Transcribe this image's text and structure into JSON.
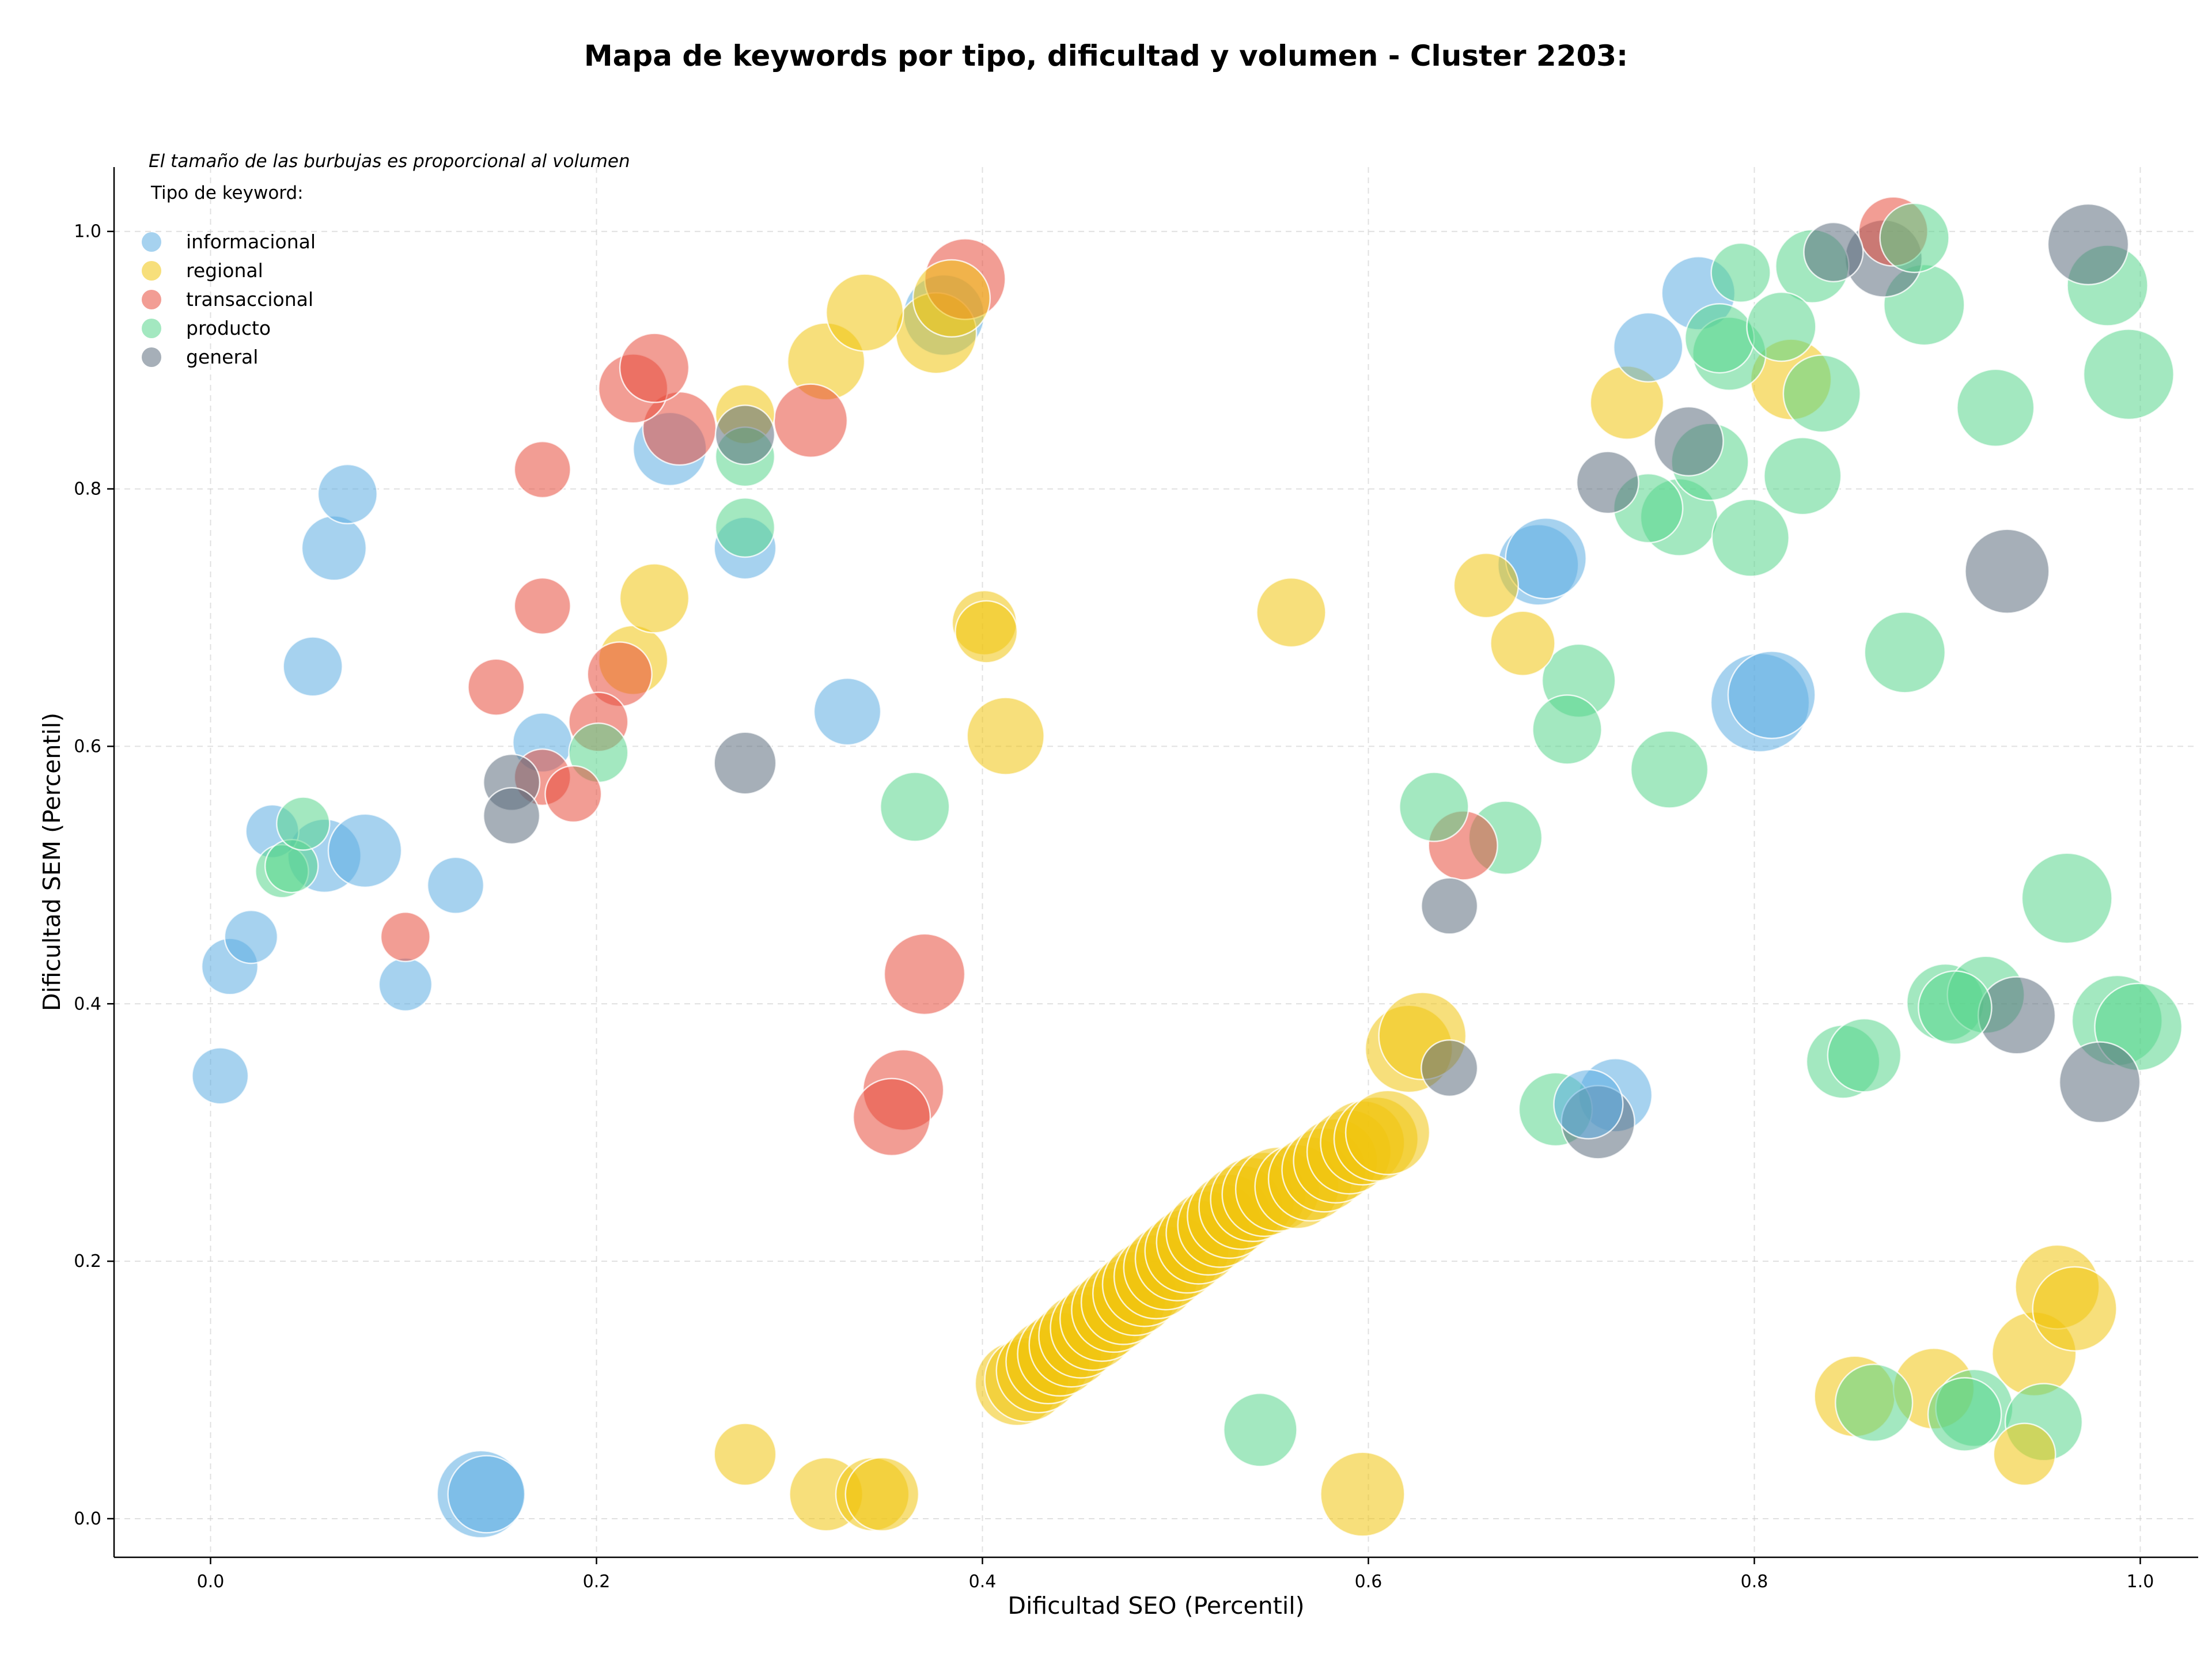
{
  "chart_data": {
    "type": "scatter",
    "title": "Mapa de keywords por tipo, dificultad y volumen - Cluster 2203:",
    "xlabel": "Dificultad SEO (Percentil)",
    "ylabel": "Dificultad SEM (Percentil)",
    "xlim": [
      -0.05,
      1.03
    ],
    "ylim": [
      -0.03,
      1.05
    ],
    "xticks": [
      "0.0",
      "0.2",
      "0.4",
      "0.6",
      "0.8",
      "1.0"
    ],
    "yticks": [
      "0.0",
      "0.2",
      "0.4",
      "0.6",
      "0.8",
      "1.0"
    ],
    "grid": true,
    "note": "El tamaño de las burbujas es proporcional al volumen",
    "legend": {
      "title": "Tipo de keyword:",
      "placement": "top-left"
    },
    "series": [
      {
        "name": "informacional",
        "color": "#5dade2",
        "points": [
          [
            0.005,
            0.344,
            5
          ],
          [
            0.01,
            0.429,
            5
          ],
          [
            0.021,
            0.452,
            4
          ],
          [
            0.032,
            0.534,
            4
          ],
          [
            0.053,
            0.662,
            6
          ],
          [
            0.059,
            0.515,
            12
          ],
          [
            0.064,
            0.754,
            8
          ],
          [
            0.071,
            0.796,
            6
          ],
          [
            0.08,
            0.519,
            12
          ],
          [
            0.101,
            0.415,
            4
          ],
          [
            0.127,
            0.492,
            5
          ],
          [
            0.14,
            0.019,
            20
          ],
          [
            0.143,
            0.019,
            14
          ],
          [
            0.172,
            0.603,
            6
          ],
          [
            0.238,
            0.831,
            12
          ],
          [
            0.277,
            0.754,
            7
          ],
          [
            0.33,
            0.627,
            9
          ],
          [
            0.38,
            0.935,
            16
          ],
          [
            0.688,
            0.741,
            16
          ],
          [
            0.692,
            0.746,
            16
          ],
          [
            0.714,
            0.322,
            10
          ],
          [
            0.728,
            0.329,
            12
          ],
          [
            0.745,
            0.91,
            10
          ],
          [
            0.771,
            0.952,
            12
          ],
          [
            0.803,
            0.634,
            28
          ],
          [
            0.809,
            0.64,
            20
          ]
        ]
      },
      {
        "name": "regional",
        "color": "#f1c40f",
        "points": [
          [
            0.219,
            0.667,
            10
          ],
          [
            0.23,
            0.715,
            10
          ],
          [
            0.277,
            0.858,
            6
          ],
          [
            0.277,
            0.05,
            7
          ],
          [
            0.319,
            0.019,
            12
          ],
          [
            0.319,
            0.899,
            14
          ],
          [
            0.339,
            0.937,
            14
          ],
          [
            0.343,
            0.019,
            12
          ],
          [
            0.348,
            0.019,
            12
          ],
          [
            0.376,
            0.921,
            16
          ],
          [
            0.384,
            0.948,
            14
          ],
          [
            0.401,
            0.696,
            8
          ],
          [
            0.402,
            0.689,
            7
          ],
          [
            0.412,
            0.608,
            14
          ],
          [
            0.418,
            0.105,
            18
          ],
          [
            0.423,
            0.108,
            18
          ],
          [
            0.429,
            0.115,
            18
          ],
          [
            0.434,
            0.122,
            18
          ],
          [
            0.44,
            0.128,
            18
          ],
          [
            0.446,
            0.135,
            18
          ],
          [
            0.451,
            0.142,
            18
          ],
          [
            0.457,
            0.148,
            18
          ],
          [
            0.462,
            0.155,
            18
          ],
          [
            0.468,
            0.162,
            18
          ],
          [
            0.473,
            0.168,
            18
          ],
          [
            0.479,
            0.175,
            18
          ],
          [
            0.484,
            0.182,
            18
          ],
          [
            0.49,
            0.188,
            18
          ],
          [
            0.495,
            0.195,
            18
          ],
          [
            0.501,
            0.202,
            18
          ],
          [
            0.506,
            0.208,
            18
          ],
          [
            0.512,
            0.215,
            18
          ],
          [
            0.517,
            0.222,
            18
          ],
          [
            0.523,
            0.228,
            18
          ],
          [
            0.528,
            0.235,
            18
          ],
          [
            0.534,
            0.242,
            18
          ],
          [
            0.54,
            0.248,
            18
          ],
          [
            0.546,
            0.252,
            18
          ],
          [
            0.553,
            0.256,
            18
          ],
          [
            0.56,
            0.704,
            10
          ],
          [
            0.563,
            0.258,
            18
          ],
          [
            0.57,
            0.264,
            18
          ],
          [
            0.577,
            0.271,
            18
          ],
          [
            0.583,
            0.278,
            18
          ],
          [
            0.59,
            0.285,
            18
          ],
          [
            0.597,
            0.292,
            18
          ],
          [
            0.597,
            0.019,
            18
          ],
          [
            0.604,
            0.295,
            18
          ],
          [
            0.61,
            0.3,
            18
          ],
          [
            0.621,
            0.365,
            20
          ],
          [
            0.628,
            0.375,
            20
          ],
          [
            0.661,
            0.725,
            8
          ],
          [
            0.68,
            0.68,
            8
          ],
          [
            0.734,
            0.867,
            12
          ],
          [
            0.819,
            0.885,
            16
          ],
          [
            0.852,
            0.095,
            16
          ],
          [
            0.893,
            0.101,
            16
          ],
          [
            0.94,
            0.05,
            7
          ],
          [
            0.945,
            0.128,
            18
          ],
          [
            0.957,
            0.18,
            18
          ],
          [
            0.966,
            0.163,
            18
          ]
        ]
      },
      {
        "name": "transaccional",
        "color": "#e74c3c",
        "points": [
          [
            0.101,
            0.452,
            3
          ],
          [
            0.148,
            0.646,
            5
          ],
          [
            0.172,
            0.815,
            5
          ],
          [
            0.172,
            0.709,
            5
          ],
          [
            0.172,
            0.576,
            5
          ],
          [
            0.188,
            0.563,
            5
          ],
          [
            0.201,
            0.619,
            6
          ],
          [
            0.212,
            0.656,
            8
          ],
          [
            0.219,
            0.878,
            10
          ],
          [
            0.23,
            0.894,
            10
          ],
          [
            0.243,
            0.847,
            12
          ],
          [
            0.311,
            0.853,
            12
          ],
          [
            0.353,
            0.312,
            14
          ],
          [
            0.359,
            0.333,
            16
          ],
          [
            0.37,
            0.423,
            16
          ],
          [
            0.391,
            0.963,
            16
          ],
          [
            0.649,
            0.523,
            10
          ],
          [
            0.872,
            1.0,
            10
          ]
        ]
      },
      {
        "name": "producto",
        "color": "#58d68d",
        "points": [
          [
            0.037,
            0.503,
            4
          ],
          [
            0.042,
            0.507,
            4
          ],
          [
            0.048,
            0.54,
            4
          ],
          [
            0.201,
            0.595,
            6
          ],
          [
            0.277,
            0.825,
            6
          ],
          [
            0.277,
            0.77,
            6
          ],
          [
            0.365,
            0.553,
            10
          ],
          [
            0.544,
            0.069,
            12
          ],
          [
            0.634,
            0.553,
            10
          ],
          [
            0.671,
            0.529,
            12
          ],
          [
            0.697,
            0.318,
            12
          ],
          [
            0.703,
            0.613,
            10
          ],
          [
            0.709,
            0.651,
            12
          ],
          [
            0.745,
            0.785,
            10
          ],
          [
            0.756,
            0.582,
            14
          ],
          [
            0.761,
            0.778,
            14
          ],
          [
            0.777,
            0.821,
            14
          ],
          [
            0.782,
            0.917,
            10
          ],
          [
            0.787,
            0.905,
            12
          ],
          [
            0.793,
            0.968,
            6
          ],
          [
            0.798,
            0.762,
            14
          ],
          [
            0.814,
            0.926,
            10
          ],
          [
            0.825,
            0.81,
            14
          ],
          [
            0.83,
            0.973,
            12
          ],
          [
            0.835,
            0.874,
            14
          ],
          [
            0.846,
            0.355,
            12
          ],
          [
            0.857,
            0.36,
            12
          ],
          [
            0.862,
            0.09,
            14
          ],
          [
            0.878,
            0.673,
            16
          ],
          [
            0.883,
            0.995,
            10
          ],
          [
            0.888,
            0.943,
            16
          ],
          [
            0.899,
            0.401,
            14
          ],
          [
            0.904,
            0.397,
            12
          ],
          [
            0.909,
            0.081,
            12
          ],
          [
            0.914,
            0.086,
            14
          ],
          [
            0.92,
            0.407,
            14
          ],
          [
            0.925,
            0.863,
            14
          ],
          [
            0.95,
            0.075,
            14
          ],
          [
            0.962,
            0.482,
            22
          ],
          [
            0.983,
            0.958,
            16
          ],
          [
            0.988,
            0.387,
            22
          ],
          [
            0.994,
            0.889,
            22
          ],
          [
            0.999,
            0.382,
            20
          ]
        ]
      },
      {
        "name": "general",
        "color": "#5d6d7e",
        "points": [
          [
            0.156,
            0.572,
            5
          ],
          [
            0.156,
            0.546,
            5
          ],
          [
            0.277,
            0.842,
            6
          ],
          [
            0.277,
            0.587,
            7
          ],
          [
            0.642,
            0.476,
            5
          ],
          [
            0.642,
            0.35,
            5
          ],
          [
            0.719,
            0.308,
            12
          ],
          [
            0.724,
            0.805,
            7
          ],
          [
            0.766,
            0.837,
            10
          ],
          [
            0.841,
            0.984,
            6
          ],
          [
            0.867,
            0.979,
            14
          ],
          [
            0.931,
            0.736,
            18
          ],
          [
            0.936,
            0.391,
            14
          ],
          [
            0.973,
            0.99,
            16
          ],
          [
            0.979,
            0.339,
            16
          ]
        ]
      }
    ]
  }
}
